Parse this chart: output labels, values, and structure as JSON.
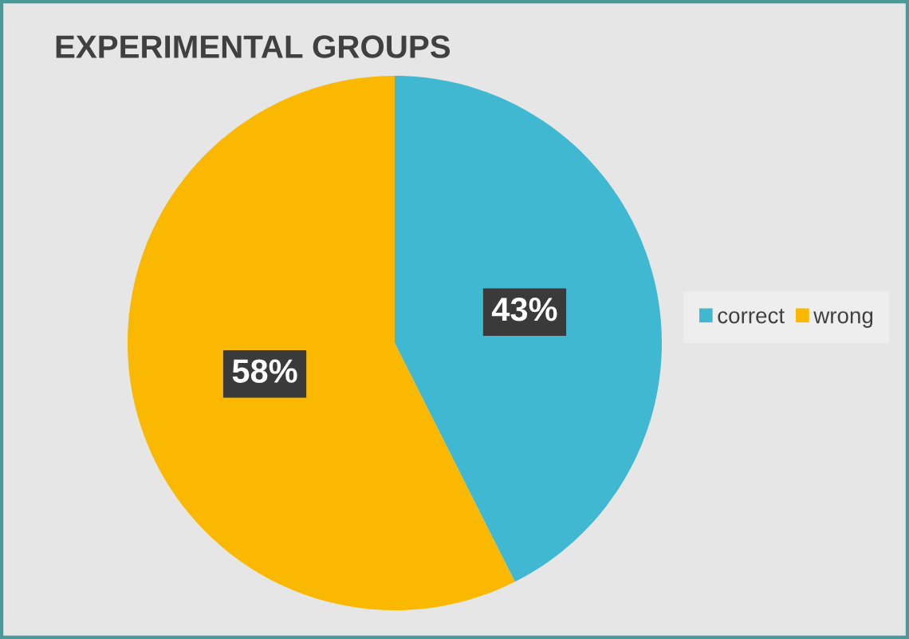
{
  "chart_data": {
    "type": "pie",
    "title": "EXPERIMENTAL GROUPS",
    "categories": [
      "correct",
      "wrong"
    ],
    "values": [
      43,
      58
    ],
    "colors": [
      "#40b8d2",
      "#fab800"
    ],
    "value_labels": [
      "43%",
      "58%"
    ],
    "legend": "right"
  }
}
